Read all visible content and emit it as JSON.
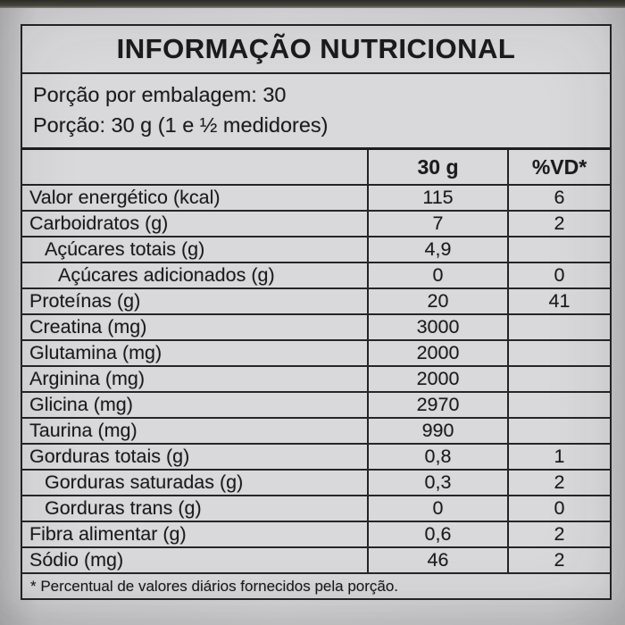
{
  "photo": {
    "label_background": "#d9d9db",
    "page_background": "#d3d3d5",
    "border_color": "#242424",
    "text_color": "#1b1b1b",
    "jar_top_edge_color": "#3c3c34"
  },
  "header": {
    "title": "INFORMAÇÃO NUTRICIONAL",
    "servings_per_package": "Porção por embalagem: 30",
    "serving_size": "Porção: 30 g (1 e ½ medidores)"
  },
  "table": {
    "columns": [
      "",
      "30 g",
      "%VD*"
    ],
    "rows": [
      {
        "label": "Valor energético (kcal)",
        "amount": "115",
        "dv": "6",
        "indent": 0
      },
      {
        "label": "Carboidratos (g)",
        "amount": "7",
        "dv": "2",
        "indent": 0
      },
      {
        "label": "Açúcares totais (g)",
        "amount": "4,9",
        "dv": "",
        "indent": 1
      },
      {
        "label": "Açúcares adicionados (g)",
        "amount": "0",
        "dv": "0",
        "indent": 2
      },
      {
        "label": "Proteínas (g)",
        "amount": "20",
        "dv": "41",
        "indent": 0
      },
      {
        "label": "Creatina (mg)",
        "amount": "3000",
        "dv": "",
        "indent": 0
      },
      {
        "label": "Glutamina (mg)",
        "amount": "2000",
        "dv": "",
        "indent": 0
      },
      {
        "label": "Arginina (mg)",
        "amount": "2000",
        "dv": "",
        "indent": 0
      },
      {
        "label": "Glicina (mg)",
        "amount": "2970",
        "dv": "",
        "indent": 0
      },
      {
        "label": "Taurina (mg)",
        "amount": "990",
        "dv": "",
        "indent": 0
      },
      {
        "label": "Gorduras totais (g)",
        "amount": "0,8",
        "dv": "1",
        "indent": 0
      },
      {
        "label": "Gorduras saturadas (g)",
        "amount": "0,3",
        "dv": "2",
        "indent": 1
      },
      {
        "label": "Gorduras trans (g)",
        "amount": "0",
        "dv": "0",
        "indent": 1
      },
      {
        "label": "Fibra alimentar (g)",
        "amount": "0,6",
        "dv": "2",
        "indent": 0
      },
      {
        "label": "Sódio (mg)",
        "amount": "46",
        "dv": "2",
        "indent": 0
      }
    ],
    "footnote": "* Percentual de valores diários fornecidos pela porção."
  }
}
